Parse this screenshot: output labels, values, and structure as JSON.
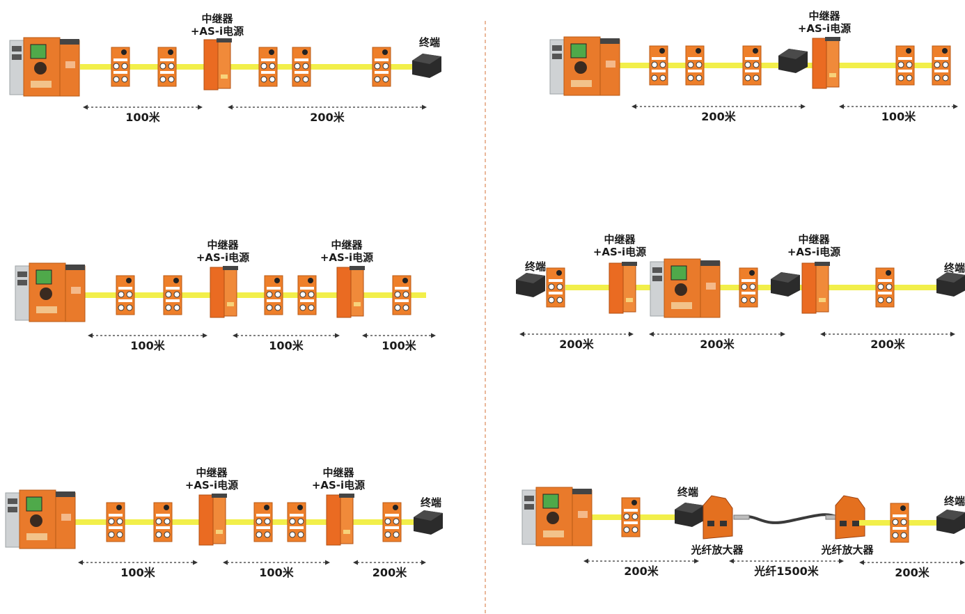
{
  "labels": {
    "repeater_line1": "中继器",
    "repeater_line2": "+AS-i电源",
    "terminal": "终端",
    "fiber_amp": "光纤放大器",
    "fiber": "光纤1500米",
    "d100": "100米",
    "d200": "200米"
  },
  "colors": {
    "cable": "#f2ef4a",
    "module_orange": "#ee7f2a",
    "master_body": "#e97a2b",
    "terminator": "#2b2b2b",
    "divider": "#e3a07a"
  },
  "icons": {
    "master": "as-i-master-controller-icon",
    "slave": "io-module-icon",
    "repeater": "repeater-power-supply-icon",
    "terminal": "terminator-box-icon",
    "fiber_amp": "fiber-amplifier-icon",
    "fiber": "fiber-optic-cable-icon"
  },
  "configs": [
    {
      "name": "config-1",
      "distances": [
        "100米",
        "200米"
      ]
    },
    {
      "name": "config-2",
      "distances": [
        "200米",
        "100米"
      ]
    },
    {
      "name": "config-3",
      "distances": [
        "100米",
        "100米",
        "100米"
      ]
    },
    {
      "name": "config-4",
      "distances": [
        "200米",
        "200米",
        "200米"
      ]
    },
    {
      "name": "config-5",
      "distances": [
        "100米",
        "100米",
        "200米"
      ]
    },
    {
      "name": "config-6",
      "distances": [
        "200米",
        "光纤1500米",
        "200米"
      ]
    }
  ]
}
